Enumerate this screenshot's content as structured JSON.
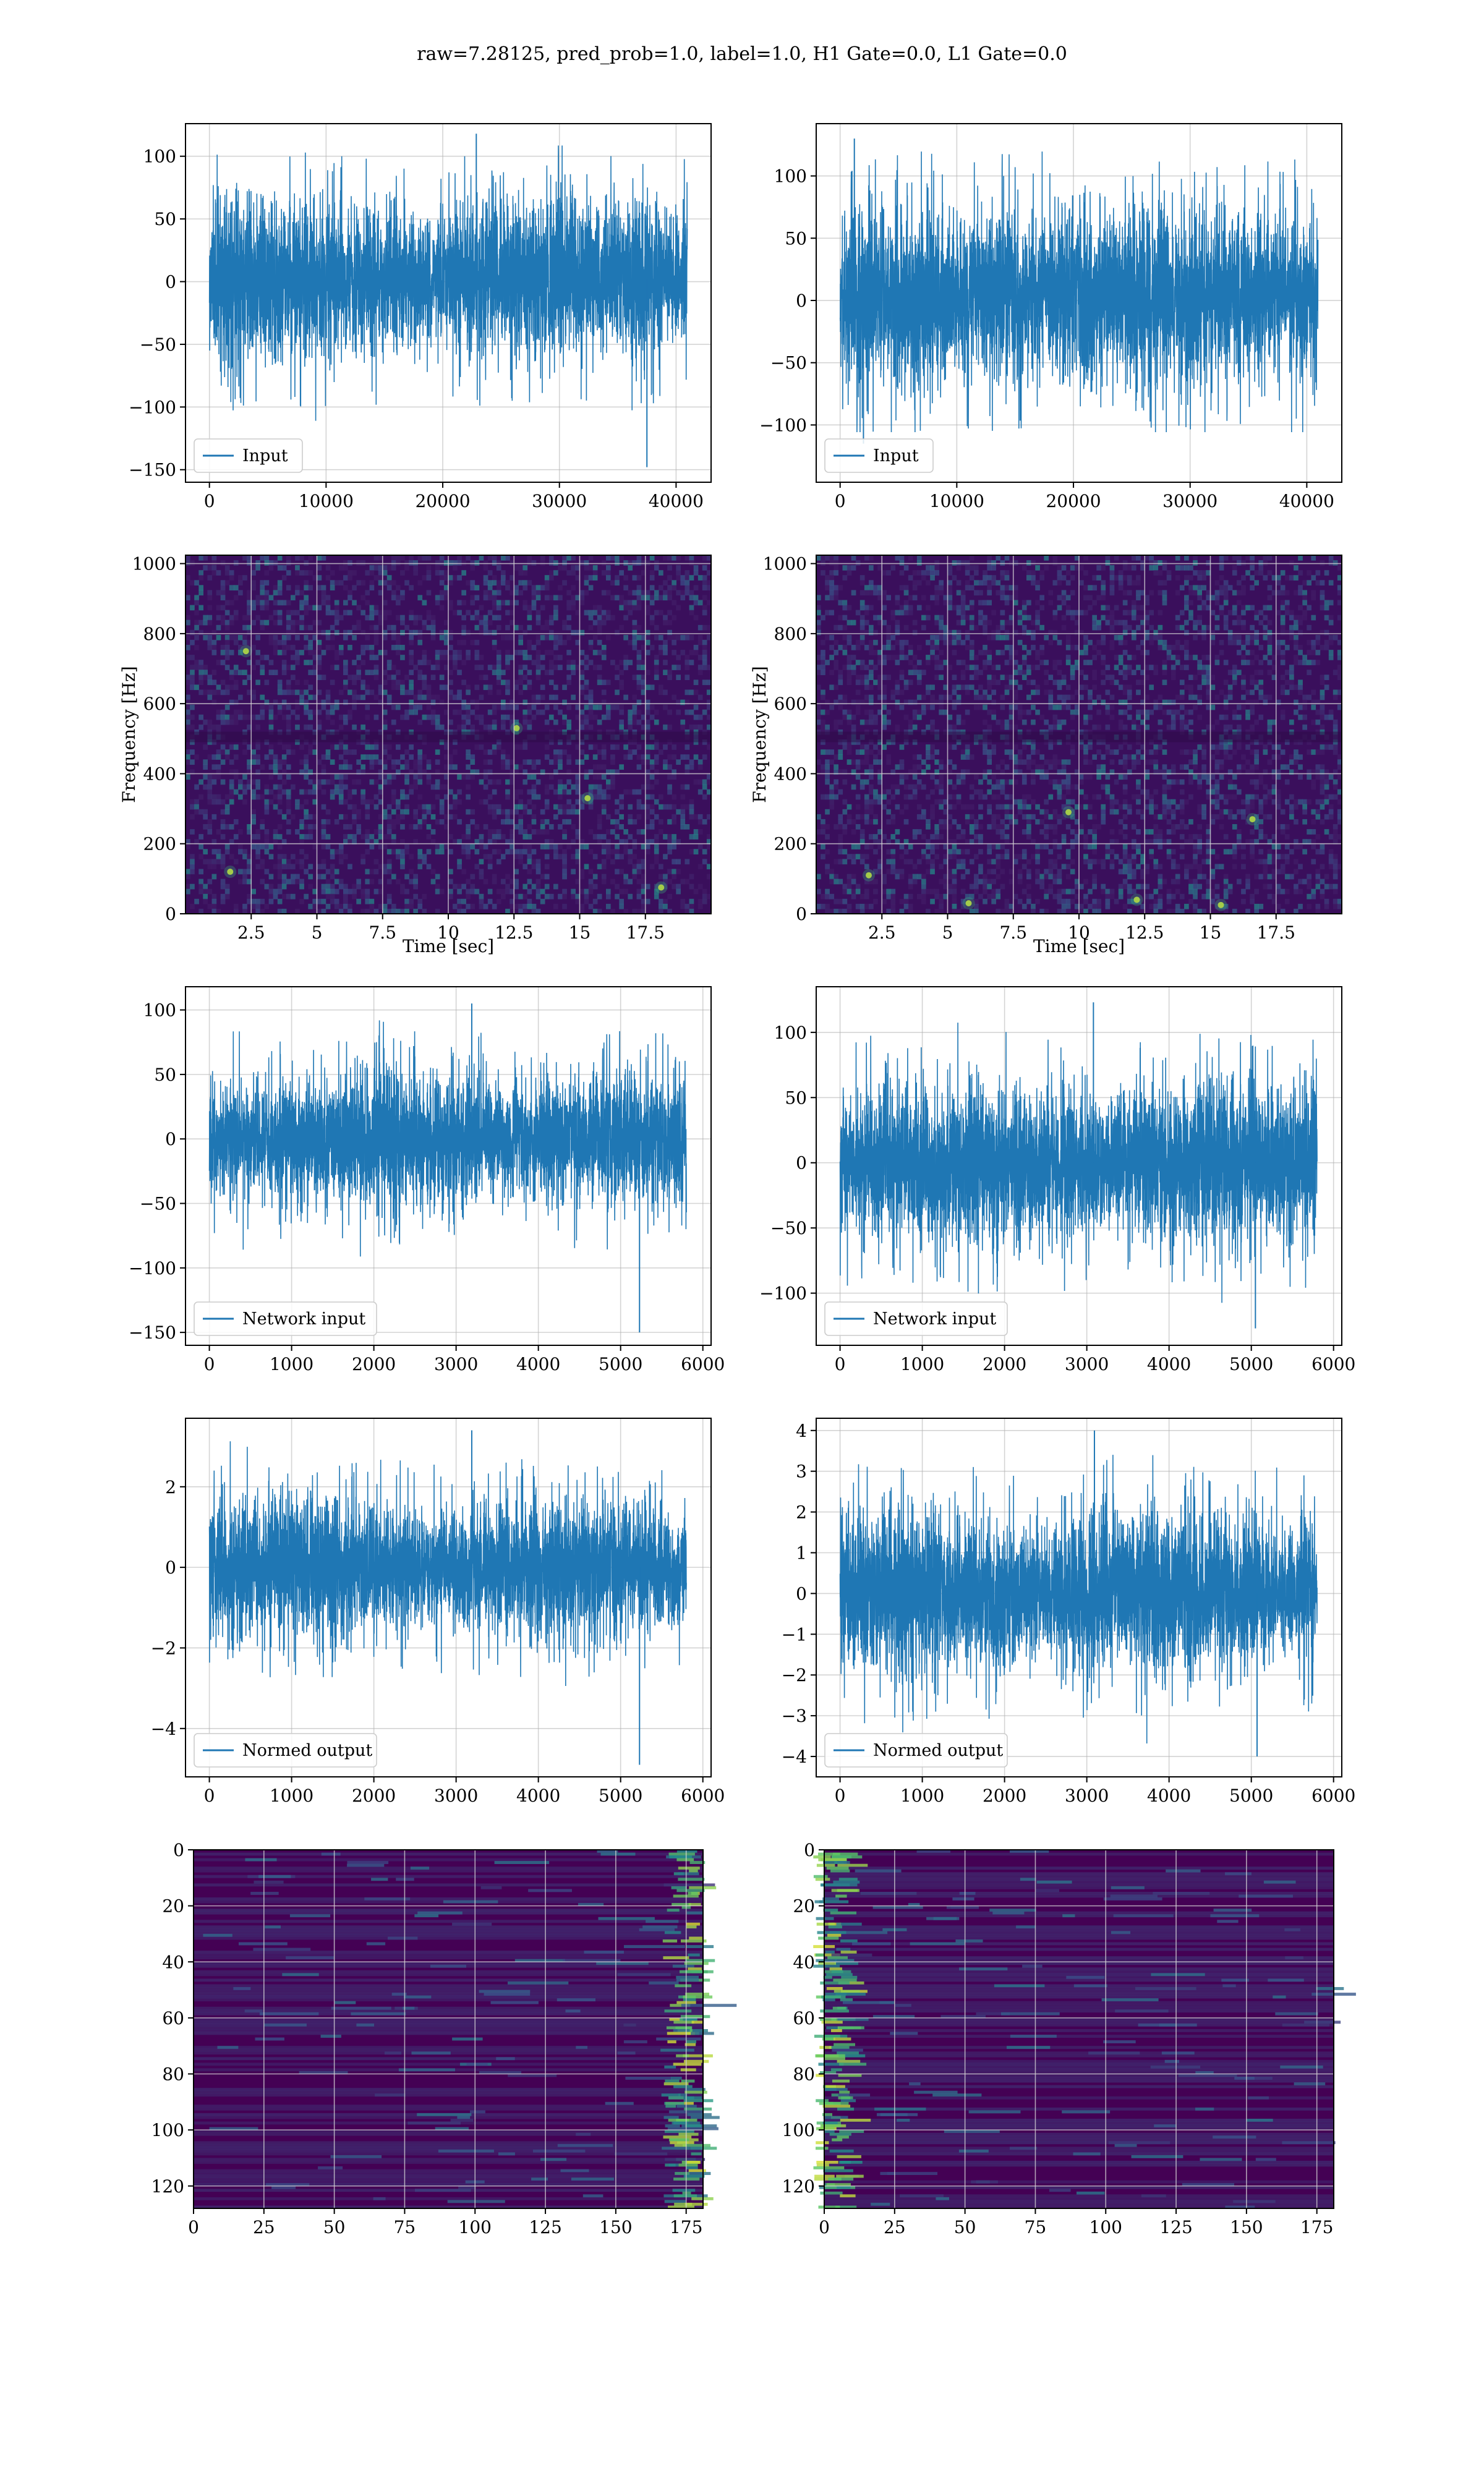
{
  "figure": {
    "title": "raw=7.28125, pred_prob=1.0, label=1.0, H1 Gate=0.0, L1 Gate=0.0"
  },
  "colors": {
    "line": "#1f77b4",
    "viridis_dark": "#440154",
    "viridis_mid": "#21918c",
    "viridis_light": "#fde725",
    "grid": "#b0b0b0"
  },
  "chart_data": [
    {
      "id": "input-left",
      "type": "line",
      "legend": "Input",
      "legend_position": "lower-left",
      "grid": true,
      "xlim": [
        -2050,
        43000
      ],
      "ylim": [
        -160,
        126
      ],
      "xticks": [
        0,
        10000,
        20000,
        30000,
        40000
      ],
      "yticks": [
        -150,
        -100,
        -50,
        0,
        50,
        100
      ],
      "signal": {
        "n": 40960,
        "envelope_upper": 70,
        "envelope_lower": -65,
        "max": 118,
        "min": -148,
        "min_at": 37500
      }
    },
    {
      "id": "input-right",
      "type": "line",
      "legend": "Input",
      "legend_position": "lower-left",
      "grid": true,
      "xlim": [
        -2050,
        43000
      ],
      "ylim": [
        -146,
        142
      ],
      "xticks": [
        0,
        10000,
        20000,
        30000,
        40000
      ],
      "yticks": [
        -100,
        -50,
        0,
        50,
        100
      ],
      "signal": {
        "n": 40960,
        "envelope_upper": 80,
        "envelope_lower": -75,
        "max": 130,
        "min": -115,
        "min_at": 2000
      }
    },
    {
      "id": "spectrogram-left",
      "type": "heatmap",
      "colormap": "viridis",
      "grid": true,
      "xlabel": "Time [sec]",
      "ylabel": "Frequency [Hz]",
      "xlim": [
        0,
        20
      ],
      "ylim": [
        0,
        1024
      ],
      "xticks": [
        2.5,
        5.0,
        7.5,
        10.0,
        12.5,
        15.0,
        17.5
      ],
      "yticks": [
        0,
        200,
        400,
        600,
        800,
        1000
      ],
      "hotspots": [
        [
          1.7,
          120
        ],
        [
          12.6,
          530
        ],
        [
          15.3,
          330
        ],
        [
          18.1,
          75
        ],
        [
          2.3,
          750
        ]
      ]
    },
    {
      "id": "spectrogram-right",
      "type": "heatmap",
      "colormap": "viridis",
      "grid": true,
      "xlabel": "Time [sec]",
      "ylabel": "Frequency [Hz]",
      "xlim": [
        0,
        20
      ],
      "ylim": [
        0,
        1024
      ],
      "xticks": [
        2.5,
        5.0,
        7.5,
        10.0,
        12.5,
        15.0,
        17.5
      ],
      "yticks": [
        0,
        200,
        400,
        600,
        800,
        1000
      ],
      "hotspots": [
        [
          5.8,
          30
        ],
        [
          9.6,
          290
        ],
        [
          12.2,
          40
        ],
        [
          15.4,
          25
        ],
        [
          16.6,
          270
        ],
        [
          2.0,
          110
        ]
      ]
    },
    {
      "id": "network-input-left",
      "type": "line",
      "legend": "Network input",
      "legend_position": "lower-left",
      "grid": true,
      "xlim": [
        -290,
        6100
      ],
      "ylim": [
        -160,
        118
      ],
      "xticks": [
        0,
        1000,
        2000,
        3000,
        4000,
        5000,
        6000
      ],
      "yticks": [
        -150,
        -100,
        -50,
        0,
        50,
        100
      ],
      "signal": {
        "n": 5800,
        "envelope_upper": 55,
        "envelope_lower": -55,
        "max": 105,
        "min": -150,
        "min_at": 5230
      }
    },
    {
      "id": "network-input-right",
      "type": "line",
      "legend": "Network input",
      "legend_position": "lower-left",
      "grid": true,
      "xlim": [
        -290,
        6100
      ],
      "ylim": [
        -140,
        135
      ],
      "xticks": [
        0,
        1000,
        2000,
        3000,
        4000,
        5000,
        6000
      ],
      "yticks": [
        -100,
        -50,
        0,
        50,
        100
      ],
      "signal": {
        "n": 5800,
        "envelope_upper": 65,
        "envelope_lower": -65,
        "max": 123,
        "min": -127,
        "min_at": 5050
      }
    },
    {
      "id": "normed-output-left",
      "type": "line",
      "legend": "Normed output",
      "legend_position": "lower-left",
      "grid": true,
      "xlim": [
        -290,
        6100
      ],
      "ylim": [
        -5.2,
        3.7
      ],
      "xticks": [
        0,
        1000,
        2000,
        3000,
        4000,
        5000,
        6000
      ],
      "yticks": [
        -4,
        -2,
        0,
        2
      ],
      "signal": {
        "n": 5800,
        "envelope_upper": 1.8,
        "envelope_lower": -1.8,
        "max": 3.4,
        "min": -4.9,
        "min_at": 5230
      }
    },
    {
      "id": "normed-output-right",
      "type": "line",
      "legend": "Normed output",
      "legend_position": "lower-left",
      "grid": true,
      "xlim": [
        -290,
        6100
      ],
      "ylim": [
        -4.5,
        4.3
      ],
      "xticks": [
        0,
        1000,
        2000,
        3000,
        4000,
        5000,
        6000
      ],
      "yticks": [
        -4,
        -3,
        -2,
        -1,
        0,
        1,
        2,
        3,
        4
      ],
      "signal": {
        "n": 5800,
        "envelope_upper": 2.1,
        "envelope_lower": -2.1,
        "max": 4.0,
        "min": -4.0,
        "min_at": 5070
      }
    },
    {
      "id": "feature-map-left",
      "type": "heatmap",
      "colormap": "viridis",
      "grid": true,
      "xlim": [
        0,
        181
      ],
      "ylim": [
        128,
        0
      ],
      "xticks": [
        0,
        25,
        50,
        75,
        100,
        125,
        150,
        175
      ],
      "yticks": [
        0,
        20,
        40,
        60,
        80,
        100,
        120
      ],
      "rows": 128,
      "cols": 181,
      "bright_cols": [
        170,
        181
      ]
    },
    {
      "id": "feature-map-right",
      "type": "heatmap",
      "colormap": "viridis",
      "grid": true,
      "xlim": [
        0,
        181
      ],
      "ylim": [
        128,
        0
      ],
      "xticks": [
        0,
        25,
        50,
        75,
        100,
        125,
        150,
        175
      ],
      "yticks": [
        0,
        20,
        40,
        60,
        80,
        100,
        120
      ],
      "rows": 128,
      "cols": 181,
      "bright_cols": [
        0,
        10
      ]
    }
  ]
}
